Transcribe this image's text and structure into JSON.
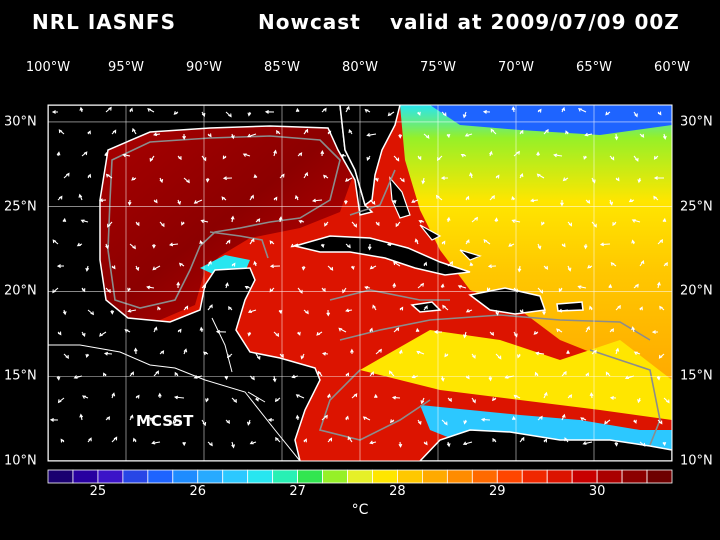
{
  "header": {
    "model": "NRL IASNFS",
    "product": "Nowcast",
    "valid": "valid at 2009/07/09 00Z"
  },
  "map": {
    "lon_labels": [
      "100°W",
      "95°W",
      "90°W",
      "85°W",
      "80°W",
      "75°W",
      "70°W",
      "65°W",
      "60°W"
    ],
    "lat_labels": [
      "30°N",
      "25°N",
      "20°N",
      "15°N",
      "10°N"
    ],
    "source_label": "MCSST",
    "land_color": "#000000",
    "coast_color": "#ffffff",
    "bathymetry_color": "#8c8c8c",
    "grid_color": "#ffffff"
  },
  "colorbar": {
    "min": 24.5,
    "max": 30.75,
    "step": 0.25,
    "tick_labels": [
      "25",
      "26",
      "27",
      "28",
      "29",
      "30"
    ],
    "unit": "°C",
    "colors": [
      "#1a0070",
      "#2800a0",
      "#3c14c8",
      "#2846e6",
      "#1e64ff",
      "#1e8cff",
      "#28aaff",
      "#2cc8ff",
      "#28e6f0",
      "#28f0b4",
      "#32e650",
      "#96f028",
      "#e6f028",
      "#ffe600",
      "#ffc800",
      "#ffaa00",
      "#ff8c00",
      "#ff6a00",
      "#ff4600",
      "#f02800",
      "#dc1400",
      "#c80000",
      "#aa0000",
      "#8c0000",
      "#6e0000"
    ]
  }
}
